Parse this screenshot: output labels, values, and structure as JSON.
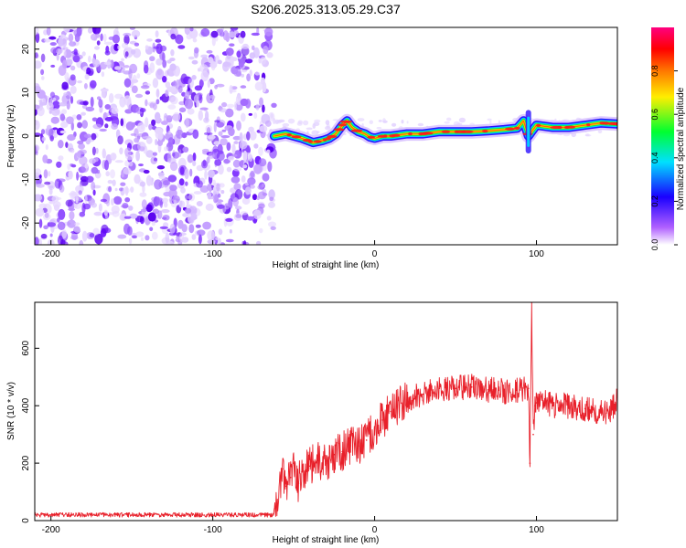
{
  "chart_data": [
    {
      "type": "heatmap",
      "title": "S206.2025.313.05.29.C37",
      "xlabel": "Height of straight line (km)",
      "ylabel": "Frequency (Hz)",
      "xlim": [
        -210,
        150
      ],
      "ylim": [
        -25,
        25
      ],
      "xticks": [
        -200,
        -100,
        0,
        100
      ],
      "xticklabels": [
        "-200",
        "-100",
        "0",
        "100"
      ],
      "yticks": [
        -20,
        -10,
        0,
        10,
        20
      ],
      "yticklabels": [
        "-20",
        "-10",
        "0",
        "10",
        "20"
      ],
      "noise_region_x": [
        -210,
        -62
      ],
      "ridge": {
        "x": [
          -62,
          -55,
          -45,
          -38,
          -32,
          -28,
          -24,
          -20,
          -17,
          -14,
          -10,
          -6,
          -3,
          0,
          5,
          10,
          20,
          30,
          40,
          50,
          60,
          70,
          80,
          88,
          92,
          95,
          97,
          100,
          110,
          120,
          130,
          140,
          150
        ],
        "freq": [
          0.0,
          0.5,
          -0.5,
          -1.5,
          -1.0,
          -0.5,
          0.5,
          2.5,
          3.5,
          2.0,
          1.0,
          0.5,
          -0.2,
          -0.5,
          0.0,
          0.0,
          0.5,
          0.5,
          1.0,
          1.0,
          1.0,
          1.2,
          1.5,
          1.8,
          3.5,
          0.0,
          1.0,
          2.5,
          2.0,
          2.0,
          2.5,
          3.0,
          2.8
        ]
      },
      "colorbar": {
        "label": "Normalized spectral amplitude",
        "range": [
          0,
          1
        ],
        "ticks": [
          0.0,
          0.2,
          0.4,
          0.6,
          0.8
        ],
        "ticklabels": [
          "0.0",
          "0.2",
          "0.4",
          "0.6",
          "0.8"
        ],
        "colormap": [
          "#ffffff",
          "#7a00ff",
          "#1a00ff",
          "#00e0ff",
          "#00ff30",
          "#ffee00",
          "#ff7700",
          "#ff0000",
          "#ff0080"
        ]
      }
    },
    {
      "type": "line",
      "xlabel": "Height of straight line (km)",
      "ylabel": "SNR (10 * v/v)",
      "xlim": [
        -210,
        150
      ],
      "ylim": [
        0,
        760
      ],
      "xticks": [
        -200,
        -100,
        0,
        100
      ],
      "xticklabels": [
        "-200",
        "-100",
        "0",
        "100"
      ],
      "yticks": [
        0,
        200,
        400,
        600
      ],
      "yticklabels": [
        "0",
        "200",
        "400",
        "600"
      ],
      "series": [
        {
          "name": "SNR",
          "color": "#e8202a",
          "x": [
            -210,
            -150,
            -100,
            -63,
            -60,
            -57,
            -55,
            -52,
            -50,
            -47,
            -45,
            -40,
            -35,
            -30,
            -25,
            -20,
            -15,
            -10,
            -5,
            0,
            5,
            10,
            20,
            30,
            40,
            50,
            60,
            70,
            80,
            90,
            95,
            96,
            97,
            98,
            99,
            100,
            105,
            110,
            120,
            130,
            140,
            145,
            150
          ],
          "y": [
            20,
            20,
            20,
            20,
            50,
            180,
            120,
            150,
            200,
            130,
            170,
            190,
            210,
            200,
            230,
            240,
            260,
            260,
            280,
            320,
            350,
            380,
            420,
            440,
            460,
            460,
            465,
            455,
            450,
            455,
            460,
            200,
            760,
            300,
            400,
            410,
            410,
            400,
            400,
            390,
            380,
            370,
            420
          ]
        }
      ]
    }
  ]
}
